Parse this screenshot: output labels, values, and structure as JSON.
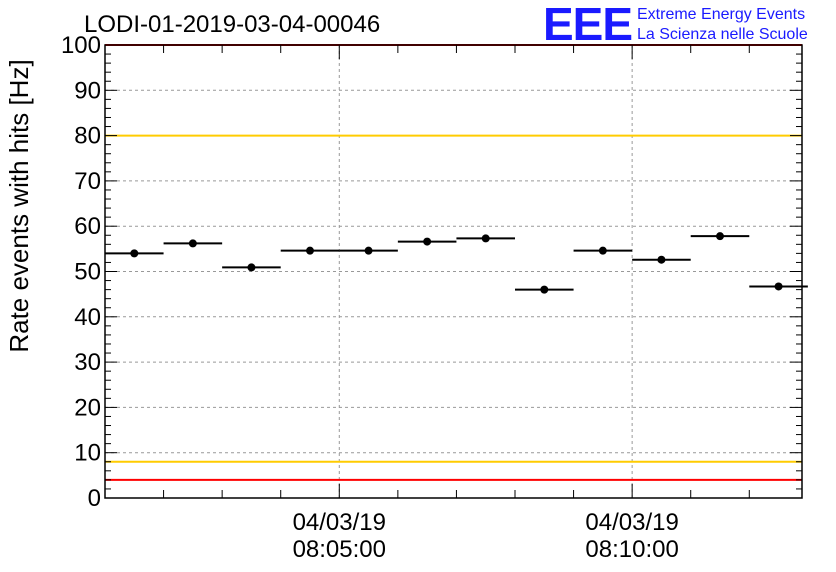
{
  "title": "LODI-01-2019-03-04-00046",
  "logo": {
    "acronym": "EEE",
    "line1": "Extreme Energy Events",
    "line2": "La Scienza nelle Scuole",
    "color": "#1a1aff"
  },
  "chart_data": {
    "type": "scatter",
    "title": "LODI-01-2019-03-04-00046",
    "ylabel": "Rate events with hits [Hz]",
    "xlabel": "",
    "ylim": [
      0,
      100
    ],
    "yticks": [
      0,
      10,
      20,
      30,
      40,
      50,
      60,
      70,
      80,
      90,
      100
    ],
    "grid": true,
    "x_tick_labels": [
      {
        "date": "04/03/19",
        "time": "08:05:00"
      },
      {
        "date": "04/03/19",
        "time": "08:10:00"
      }
    ],
    "x_tick_minutes": [
      5,
      10
    ],
    "xlim_minutes": [
      1.0,
      12.9
    ],
    "points": [
      {
        "x": 1.5,
        "y": 54.0,
        "xerr": 0.5
      },
      {
        "x": 2.5,
        "y": 56.2,
        "xerr": 0.5
      },
      {
        "x": 3.5,
        "y": 50.9,
        "xerr": 0.5
      },
      {
        "x": 4.5,
        "y": 54.6,
        "xerr": 0.5
      },
      {
        "x": 5.5,
        "y": 54.6,
        "xerr": 0.5
      },
      {
        "x": 6.5,
        "y": 56.6,
        "xerr": 0.5
      },
      {
        "x": 7.5,
        "y": 57.3,
        "xerr": 0.5
      },
      {
        "x": 8.5,
        "y": 46.0,
        "xerr": 0.5
      },
      {
        "x": 9.5,
        "y": 54.6,
        "xerr": 0.5
      },
      {
        "x": 10.5,
        "y": 52.6,
        "xerr": 0.5
      },
      {
        "x": 11.5,
        "y": 57.8,
        "xerr": 0.5
      },
      {
        "x": 12.5,
        "y": 46.7,
        "xerr": 0.5
      }
    ],
    "reference_lines": [
      {
        "y": 100,
        "color": "#ff0000"
      },
      {
        "y": 80,
        "color": "#ffcc00"
      },
      {
        "y": 8,
        "color": "#ffcc00"
      },
      {
        "y": 4,
        "color": "#ff0000"
      }
    ],
    "marker_color": "#000000",
    "grid_color": "#999999"
  }
}
